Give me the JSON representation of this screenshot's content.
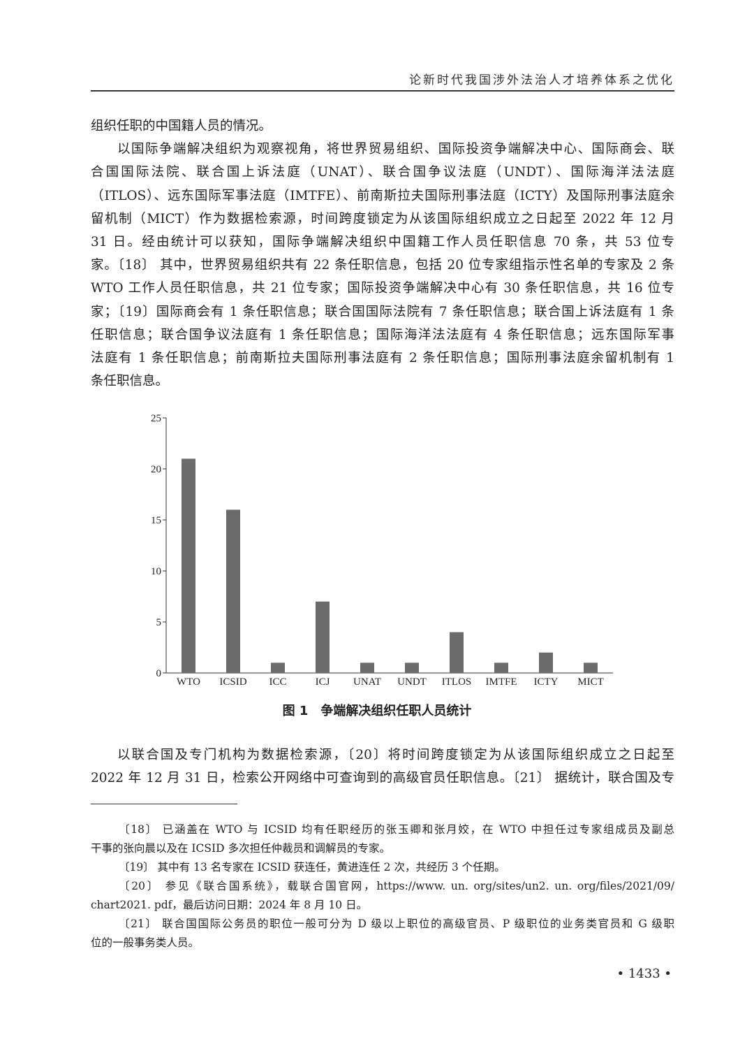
{
  "header": {
    "running_title": "论新时代我国涉外法治人才培养体系之优化"
  },
  "body_lines": [
    "组织任职的中国籍人员的情况。",
    "以国际争端解决组织为观察视角，将世界贸易组织、国际投资争端解决中心、国际商会、联",
    "合国国际法院、联合国上诉法庭（UNAT）、联合国争议法庭（UNDT）、国际海洋法法庭",
    "（ITLOS）、远东国际军事法庭（IMTFE）、前南斯拉夫国际刑事法庭（ICTY）及国际刑事法庭余",
    "留机制（MICT）作为数据检索源，时间跨度锁定为从该国际组织成立之日起至 2022 年 12 月",
    "31 日。经由统计可以获知，国际争端解决组织中国籍工作人员任职信息 70 条，共 53 位专",
    "家。〔18〕 其中，世界贸易组织共有 22 条任职信息，包括 20 位专家组指示性名单的专家及 2 条",
    "WTO 工作人员任职信息，共 21 位专家；国际投资争端解决中心有 30 条任职信息，共 16 位专",
    "家；〔19〕国际商会有 1 条任职信息；联合国国际法院有 7 条任职信息；联合国上诉法庭有 1 条",
    "任职信息；联合国争议法庭有 1 条任职信息；国际海洋法法庭有 4 条任职信息；远东国际军事",
    "法庭有 1 条任职信息；前南斯拉夫国际刑事法庭有 2 条任职信息；国际刑事法庭余留机制有 1",
    "条任职信息。"
  ],
  "body_lines_2": [
    "以联合国及专门机构为数据检索源，〔20〕将时间跨度锁定为从该国际组织成立之日起至",
    "2022 年 12 月 31 日，检索公开网络中可查询到的高级官员任职信息。〔21〕 据统计，联合国及专"
  ],
  "figure": {
    "caption": "图 1　争端解决组织任职人员统计"
  },
  "chart_data": {
    "type": "bar",
    "categories": [
      "WTO",
      "ICSID",
      "ICC",
      "ICJ",
      "UNAT",
      "UNDT",
      "ITLOS",
      "IMTFE",
      "ICTY",
      "MICT"
    ],
    "values": [
      21,
      16,
      1,
      7,
      1,
      1,
      4,
      1,
      2,
      1
    ],
    "ylim": [
      0,
      25
    ],
    "yticks": [
      "0",
      "5",
      "10",
      "15",
      "20",
      "25"
    ],
    "grid": false,
    "bar_color": "#6b6b6b"
  },
  "footnotes": [
    "〔18〕 已涵盖在 WTO 与 ICSID 均有任职经历的张玉卿和张月姣，在 WTO 中担任过专家组成员及副总",
    "干事的张向晨以及在 ICSID 多次担任仲裁员和调解员的专家。",
    "〔19〕 其中有 13 名专家在 ICSID 获连任，黄进连任 2 次，共经历 3 个任期。",
    "〔20〕 参见《联合国系统》，载联合国官网，https://www. un. org/sites/un2. un. org/files/2021/09/",
    "chart2021. pdf，最后访问日期：2024 年 8 月 10 日。",
    "〔21〕 联合国国际公务员的职位一般可分为 D 级以上职位的高级官员、P 级职位的业务类官员和 G 级职",
    "位的一般事务类人员。"
  ],
  "page_number": "• 1433 •"
}
